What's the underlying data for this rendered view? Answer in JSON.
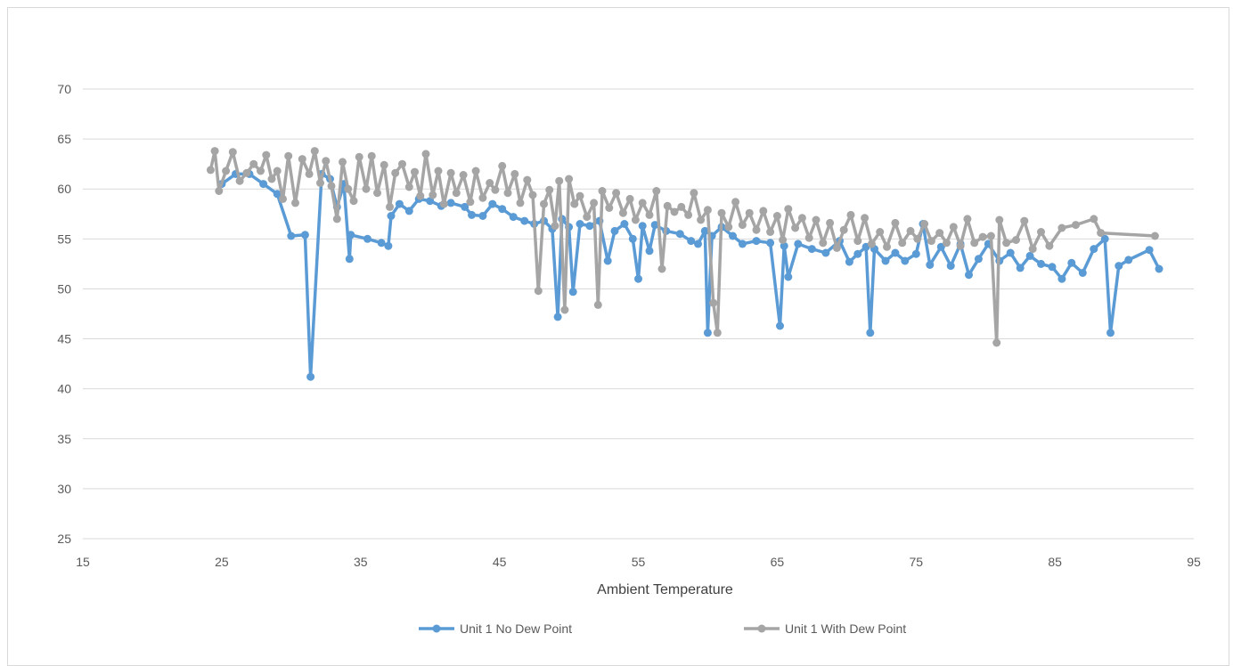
{
  "chart_data": {
    "type": "line",
    "title": "",
    "xlabel": "Ambient Temperature",
    "ylabel": "",
    "xlim": [
      15,
      95
    ],
    "ylim": [
      25,
      70
    ],
    "x_ticks": [
      "15",
      "25",
      "35",
      "45",
      "55",
      "65",
      "75",
      "85",
      "95"
    ],
    "y_ticks": [
      "25",
      "30",
      "35",
      "40",
      "45",
      "50",
      "55",
      "60",
      "65",
      "70"
    ],
    "grid": "horizontal",
    "legend_position": "bottom",
    "series": [
      {
        "name": "Unit 1 No Dew Point",
        "color": "#5b9bd5",
        "points": [
          [
            25.0,
            60.5
          ],
          [
            26.0,
            61.5
          ],
          [
            27.0,
            61.5
          ],
          [
            28.0,
            60.5
          ],
          [
            29.0,
            59.5
          ],
          [
            30.0,
            55.3
          ],
          [
            31.0,
            55.4
          ],
          [
            31.4,
            41.2
          ],
          [
            32.2,
            61.5
          ],
          [
            32.8,
            61.0
          ],
          [
            33.3,
            58.2
          ],
          [
            33.8,
            60.5
          ],
          [
            34.2,
            53.0
          ],
          [
            34.3,
            55.4
          ],
          [
            35.5,
            55.0
          ],
          [
            36.5,
            54.6
          ],
          [
            37.0,
            54.3
          ],
          [
            37.2,
            57.3
          ],
          [
            37.8,
            58.5
          ],
          [
            38.5,
            57.8
          ],
          [
            39.2,
            59.0
          ],
          [
            40.0,
            58.8
          ],
          [
            40.8,
            58.3
          ],
          [
            41.5,
            58.6
          ],
          [
            42.5,
            58.2
          ],
          [
            43.0,
            57.4
          ],
          [
            43.8,
            57.3
          ],
          [
            44.5,
            58.5
          ],
          [
            45.2,
            58.0
          ],
          [
            46.0,
            57.2
          ],
          [
            46.8,
            56.8
          ],
          [
            47.5,
            56.5
          ],
          [
            48.2,
            56.8
          ],
          [
            48.8,
            56.0
          ],
          [
            49.2,
            47.2
          ],
          [
            49.5,
            57.0
          ],
          [
            50.0,
            56.2
          ],
          [
            50.3,
            49.7
          ],
          [
            50.8,
            56.5
          ],
          [
            51.5,
            56.3
          ],
          [
            52.2,
            56.8
          ],
          [
            52.8,
            52.8
          ],
          [
            53.3,
            55.8
          ],
          [
            54.0,
            56.5
          ],
          [
            54.6,
            55.0
          ],
          [
            55.0,
            51.0
          ],
          [
            55.3,
            56.3
          ],
          [
            55.8,
            53.8
          ],
          [
            56.2,
            56.4
          ],
          [
            57.0,
            55.8
          ],
          [
            58.0,
            55.5
          ],
          [
            58.8,
            54.8
          ],
          [
            59.3,
            54.5
          ],
          [
            59.8,
            55.8
          ],
          [
            60.0,
            45.6
          ],
          [
            60.3,
            55.3
          ],
          [
            61.0,
            56.2
          ],
          [
            61.8,
            55.3
          ],
          [
            62.5,
            54.5
          ],
          [
            63.5,
            54.8
          ],
          [
            64.5,
            54.6
          ],
          [
            65.2,
            46.3
          ],
          [
            65.5,
            54.3
          ],
          [
            65.8,
            51.2
          ],
          [
            66.5,
            54.5
          ],
          [
            67.5,
            54.0
          ],
          [
            68.5,
            53.6
          ],
          [
            69.5,
            54.8
          ],
          [
            70.2,
            52.7
          ],
          [
            70.8,
            53.5
          ],
          [
            71.4,
            54.2
          ],
          [
            71.7,
            45.6
          ],
          [
            72.0,
            54.0
          ],
          [
            72.8,
            52.8
          ],
          [
            73.5,
            53.6
          ],
          [
            74.2,
            52.8
          ],
          [
            75.0,
            53.5
          ],
          [
            75.5,
            56.5
          ],
          [
            76.0,
            52.4
          ],
          [
            76.8,
            54.2
          ],
          [
            77.5,
            52.3
          ],
          [
            78.2,
            54.5
          ],
          [
            78.8,
            51.4
          ],
          [
            79.5,
            53.0
          ],
          [
            80.2,
            54.5
          ],
          [
            81.0,
            52.8
          ],
          [
            81.8,
            53.6
          ],
          [
            82.5,
            52.1
          ],
          [
            83.2,
            53.3
          ],
          [
            84.0,
            52.5
          ],
          [
            84.8,
            52.2
          ],
          [
            85.5,
            51.0
          ],
          [
            86.2,
            52.6
          ],
          [
            87.0,
            51.6
          ],
          [
            87.8,
            54.0
          ],
          [
            88.6,
            55.0
          ],
          [
            89.0,
            45.6
          ],
          [
            89.6,
            52.3
          ],
          [
            90.3,
            52.9
          ],
          [
            91.8,
            53.9
          ],
          [
            92.5,
            52.0
          ]
        ]
      },
      {
        "name": "Unit 1 With Dew Point",
        "color": "#a5a5a5",
        "points": [
          [
            24.2,
            61.9
          ],
          [
            24.5,
            63.8
          ],
          [
            24.8,
            59.8
          ],
          [
            25.3,
            61.8
          ],
          [
            25.8,
            63.7
          ],
          [
            26.3,
            60.8
          ],
          [
            26.8,
            61.6
          ],
          [
            27.3,
            62.5
          ],
          [
            27.8,
            61.8
          ],
          [
            28.2,
            63.4
          ],
          [
            28.6,
            61.0
          ],
          [
            29.0,
            61.8
          ],
          [
            29.4,
            59.0
          ],
          [
            29.8,
            63.3
          ],
          [
            30.3,
            58.6
          ],
          [
            30.8,
            63.0
          ],
          [
            31.3,
            61.5
          ],
          [
            31.7,
            63.8
          ],
          [
            32.1,
            60.6
          ],
          [
            32.5,
            62.8
          ],
          [
            32.9,
            60.3
          ],
          [
            33.3,
            57.0
          ],
          [
            33.7,
            62.7
          ],
          [
            34.1,
            60.0
          ],
          [
            34.5,
            58.8
          ],
          [
            34.9,
            63.2
          ],
          [
            35.4,
            60.0
          ],
          [
            35.8,
            63.3
          ],
          [
            36.2,
            59.6
          ],
          [
            36.7,
            62.4
          ],
          [
            37.1,
            58.2
          ],
          [
            37.5,
            61.6
          ],
          [
            38.0,
            62.5
          ],
          [
            38.5,
            60.2
          ],
          [
            38.9,
            61.7
          ],
          [
            39.3,
            59.3
          ],
          [
            39.7,
            63.5
          ],
          [
            40.2,
            59.4
          ],
          [
            40.6,
            61.8
          ],
          [
            41.0,
            58.5
          ],
          [
            41.5,
            61.6
          ],
          [
            41.9,
            59.6
          ],
          [
            42.4,
            61.4
          ],
          [
            42.9,
            58.7
          ],
          [
            43.3,
            61.8
          ],
          [
            43.8,
            59.1
          ],
          [
            44.3,
            60.6
          ],
          [
            44.7,
            59.9
          ],
          [
            45.2,
            62.3
          ],
          [
            45.6,
            59.6
          ],
          [
            46.1,
            61.5
          ],
          [
            46.5,
            58.6
          ],
          [
            47.0,
            60.9
          ],
          [
            47.4,
            59.4
          ],
          [
            47.8,
            49.8
          ],
          [
            48.2,
            58.5
          ],
          [
            48.6,
            59.9
          ],
          [
            49.0,
            56.3
          ],
          [
            49.3,
            60.8
          ],
          [
            49.7,
            47.9
          ],
          [
            50.0,
            61.0
          ],
          [
            50.4,
            58.5
          ],
          [
            50.8,
            59.3
          ],
          [
            51.3,
            57.2
          ],
          [
            51.8,
            58.6
          ],
          [
            52.1,
            48.4
          ],
          [
            52.4,
            59.8
          ],
          [
            52.9,
            58.1
          ],
          [
            53.4,
            59.6
          ],
          [
            53.9,
            57.6
          ],
          [
            54.4,
            59.0
          ],
          [
            54.8,
            56.9
          ],
          [
            55.3,
            58.6
          ],
          [
            55.8,
            57.4
          ],
          [
            56.3,
            59.8
          ],
          [
            56.7,
            52.0
          ],
          [
            57.1,
            58.3
          ],
          [
            57.6,
            57.7
          ],
          [
            58.1,
            58.2
          ],
          [
            58.6,
            57.4
          ],
          [
            59.0,
            59.6
          ],
          [
            59.5,
            56.9
          ],
          [
            60.0,
            57.9
          ],
          [
            60.4,
            48.6
          ],
          [
            60.7,
            45.6
          ],
          [
            61.0,
            57.6
          ],
          [
            61.5,
            56.2
          ],
          [
            62.0,
            58.7
          ],
          [
            62.5,
            56.4
          ],
          [
            63.0,
            57.6
          ],
          [
            63.5,
            55.9
          ],
          [
            64.0,
            57.8
          ],
          [
            64.5,
            55.7
          ],
          [
            65.0,
            57.3
          ],
          [
            65.4,
            54.9
          ],
          [
            65.8,
            58.0
          ],
          [
            66.3,
            56.1
          ],
          [
            66.8,
            57.1
          ],
          [
            67.3,
            55.1
          ],
          [
            67.8,
            56.9
          ],
          [
            68.3,
            54.6
          ],
          [
            68.8,
            56.6
          ],
          [
            69.3,
            54.1
          ],
          [
            69.8,
            55.9
          ],
          [
            70.3,
            57.4
          ],
          [
            70.8,
            54.8
          ],
          [
            71.3,
            57.1
          ],
          [
            71.8,
            54.5
          ],
          [
            72.4,
            55.7
          ],
          [
            72.9,
            54.2
          ],
          [
            73.5,
            56.6
          ],
          [
            74.0,
            54.6
          ],
          [
            74.6,
            55.8
          ],
          [
            75.1,
            55.0
          ],
          [
            75.6,
            56.5
          ],
          [
            76.1,
            54.8
          ],
          [
            76.7,
            55.6
          ],
          [
            77.2,
            54.6
          ],
          [
            77.7,
            56.2
          ],
          [
            78.2,
            54.3
          ],
          [
            78.7,
            57.0
          ],
          [
            79.2,
            54.6
          ],
          [
            79.8,
            55.2
          ],
          [
            80.4,
            55.3
          ],
          [
            80.8,
            44.6
          ],
          [
            81.0,
            56.9
          ],
          [
            81.5,
            54.6
          ],
          [
            82.2,
            54.9
          ],
          [
            82.8,
            56.8
          ],
          [
            83.4,
            54.0
          ],
          [
            84.0,
            55.7
          ],
          [
            84.6,
            54.3
          ],
          [
            85.5,
            56.1
          ],
          [
            86.5,
            56.4
          ],
          [
            87.8,
            57.0
          ],
          [
            88.3,
            55.6
          ],
          [
            92.2,
            55.3
          ]
        ]
      }
    ]
  }
}
